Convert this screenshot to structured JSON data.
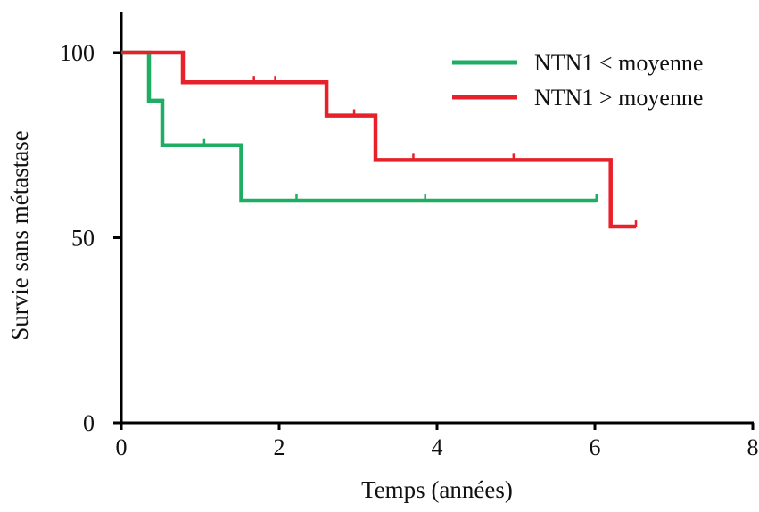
{
  "chart_data": {
    "type": "line",
    "subtype": "kaplan-meier step",
    "title": "",
    "xlabel": "Temps (années)",
    "ylabel": "Survie sans métastase",
    "xlim": [
      0,
      8
    ],
    "ylim": [
      0,
      100
    ],
    "xticks": [
      0,
      2,
      4,
      6,
      8
    ],
    "yticks": [
      0,
      50,
      100
    ],
    "grid": false,
    "legend_position": "top-right",
    "series": [
      {
        "name": "NTN1 < moyenne",
        "color": "#1fad64",
        "steps": [
          [
            0,
            100
          ],
          [
            0.35,
            100
          ],
          [
            0.35,
            87
          ],
          [
            0.52,
            87
          ],
          [
            0.52,
            75
          ],
          [
            1.52,
            75
          ],
          [
            1.52,
            60
          ],
          [
            6.02,
            60
          ]
        ],
        "censored": [
          [
            1.05,
            75
          ],
          [
            2.22,
            60
          ],
          [
            3.85,
            60
          ],
          [
            6.02,
            60
          ]
        ]
      },
      {
        "name": "NTN1 > moyenne",
        "color": "#e8202a",
        "steps": [
          [
            0,
            100
          ],
          [
            0.78,
            100
          ],
          [
            0.78,
            92
          ],
          [
            2.6,
            92
          ],
          [
            2.6,
            83
          ],
          [
            3.22,
            83
          ],
          [
            3.22,
            71
          ],
          [
            6.2,
            71
          ],
          [
            6.2,
            53
          ],
          [
            6.52,
            53
          ]
        ],
        "censored": [
          [
            1.68,
            92
          ],
          [
            1.95,
            92
          ],
          [
            2.95,
            83
          ],
          [
            3.7,
            71
          ],
          [
            4.97,
            71
          ],
          [
            6.52,
            53
          ]
        ]
      }
    ]
  }
}
